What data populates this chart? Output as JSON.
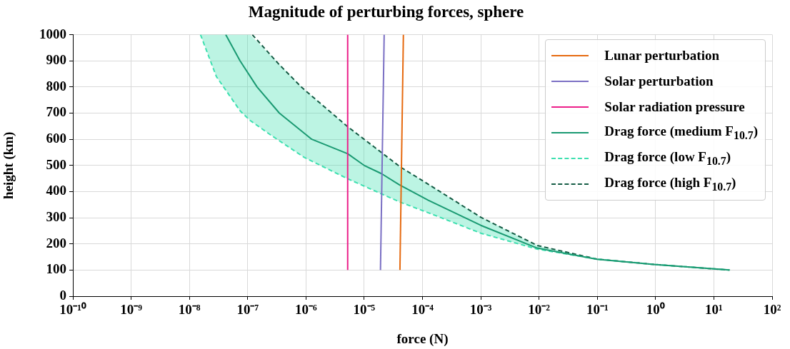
{
  "chart_data": {
    "type": "line",
    "title": "Magnitude of perturbing forces, sphere",
    "xlabel": "force (N)",
    "ylabel": "height (km)",
    "log": "x",
    "grid": true,
    "legend": "top right",
    "marker": "none",
    "xlim": [
      1e-10,
      100
    ],
    "xticks": [
      {
        "value": 1e-10,
        "label": "10⁻¹⁰"
      },
      {
        "value": 1e-09,
        "label": "10⁻⁹"
      },
      {
        "value": 1e-08,
        "label": "10⁻⁸"
      },
      {
        "value": 1e-07,
        "label": "10⁻⁷"
      },
      {
        "value": 1e-06,
        "label": "10⁻⁶"
      },
      {
        "value": 1e-05,
        "label": "10⁻⁵"
      },
      {
        "value": 0.0001,
        "label": "10⁻⁴"
      },
      {
        "value": 0.001,
        "label": "10⁻³"
      },
      {
        "value": 0.01,
        "label": "10⁻²"
      },
      {
        "value": 0.1,
        "label": "10⁻¹"
      },
      {
        "value": 1,
        "label": "10⁰"
      },
      {
        "value": 10,
        "label": "10¹"
      },
      {
        "value": 100,
        "label": "10²"
      }
    ],
    "ylim": [
      0,
      1000
    ],
    "yticks": [
      0,
      100,
      200,
      300,
      400,
      500,
      600,
      700,
      800,
      900,
      1000
    ],
    "series": [
      {
        "name": "Lunar perturbation",
        "color": "#e66a10",
        "line_style": "solid",
        "x": [
          4.1e-05,
          4.7e-05
        ],
        "values": [
          100,
          1000
        ]
      },
      {
        "name": "Solar perturbation",
        "color": "#7b70c4",
        "line_style": "solid",
        "x": [
          1.9e-05,
          2.2e-05
        ],
        "values": [
          100,
          1000
        ]
      },
      {
        "name": "Solar radiation pressure",
        "color": "#ec1f8a",
        "line_style": "solid",
        "x": [
          5.2e-06,
          5.2e-06
        ],
        "values": [
          100,
          1000
        ]
      },
      {
        "name": "Drag force (medium F$_{10.7}$)",
        "color": "#1a9a72",
        "line_style": "solid",
        "x": [
          4.2e-08,
          7.4e-08,
          1.45e-07,
          3.5e-07,
          1.26e-06,
          5.2e-06,
          1e-05,
          2e-05,
          4e-05,
          0.000126,
          0.001,
          0.0093,
          0.098,
          1,
          18.6
        ],
        "values": [
          1000,
          900,
          800,
          700,
          600,
          545,
          500,
          468,
          426,
          367,
          271,
          184,
          141,
          121,
          100
        ]
      },
      {
        "name": "Drag force (low F$_{10.7}$)",
        "color": "#3ee0b0",
        "line_style": "dashed",
        "x": [
          1.55e-08,
          2.9e-08,
          7.4e-08,
          1.1e-07,
          2.5e-07,
          9.3e-07,
          5.2e-06,
          1.9e-05,
          4.1e-05,
          0.000126,
          0.001,
          0.0093,
          0.098,
          1,
          18.6
        ],
        "values": [
          1000,
          840,
          709,
          672,
          616,
          531,
          449,
          393,
          360,
          319,
          241,
          180,
          142,
          121,
          100
        ],
        "lower": [
          1000,
          840,
          709,
          672,
          616,
          531,
          449,
          393,
          360,
          319,
          241,
          180,
          142,
          121,
          100
        ],
        "upper": [
          1000,
          1000,
          1000,
          1000,
          920,
          790,
          648,
          552,
          495,
          428,
          302,
          194,
          142,
          121,
          100
        ]
      },
      {
        "name": "Drag force (high F$_{10.7}$)",
        "color": "#155c45",
        "line_style": "dashed",
        "x": [
          1.2e-07,
          3.4e-07,
          8.5e-07,
          5.2e-06,
          2.1e-05,
          4.1e-05,
          0.0001,
          0.001,
          0.0093,
          0.098,
          1,
          18.6
        ],
        "values": [
          1000,
          888,
          798,
          648,
          545,
          495,
          442,
          302,
          194,
          142,
          121,
          100
        ]
      }
    ]
  }
}
